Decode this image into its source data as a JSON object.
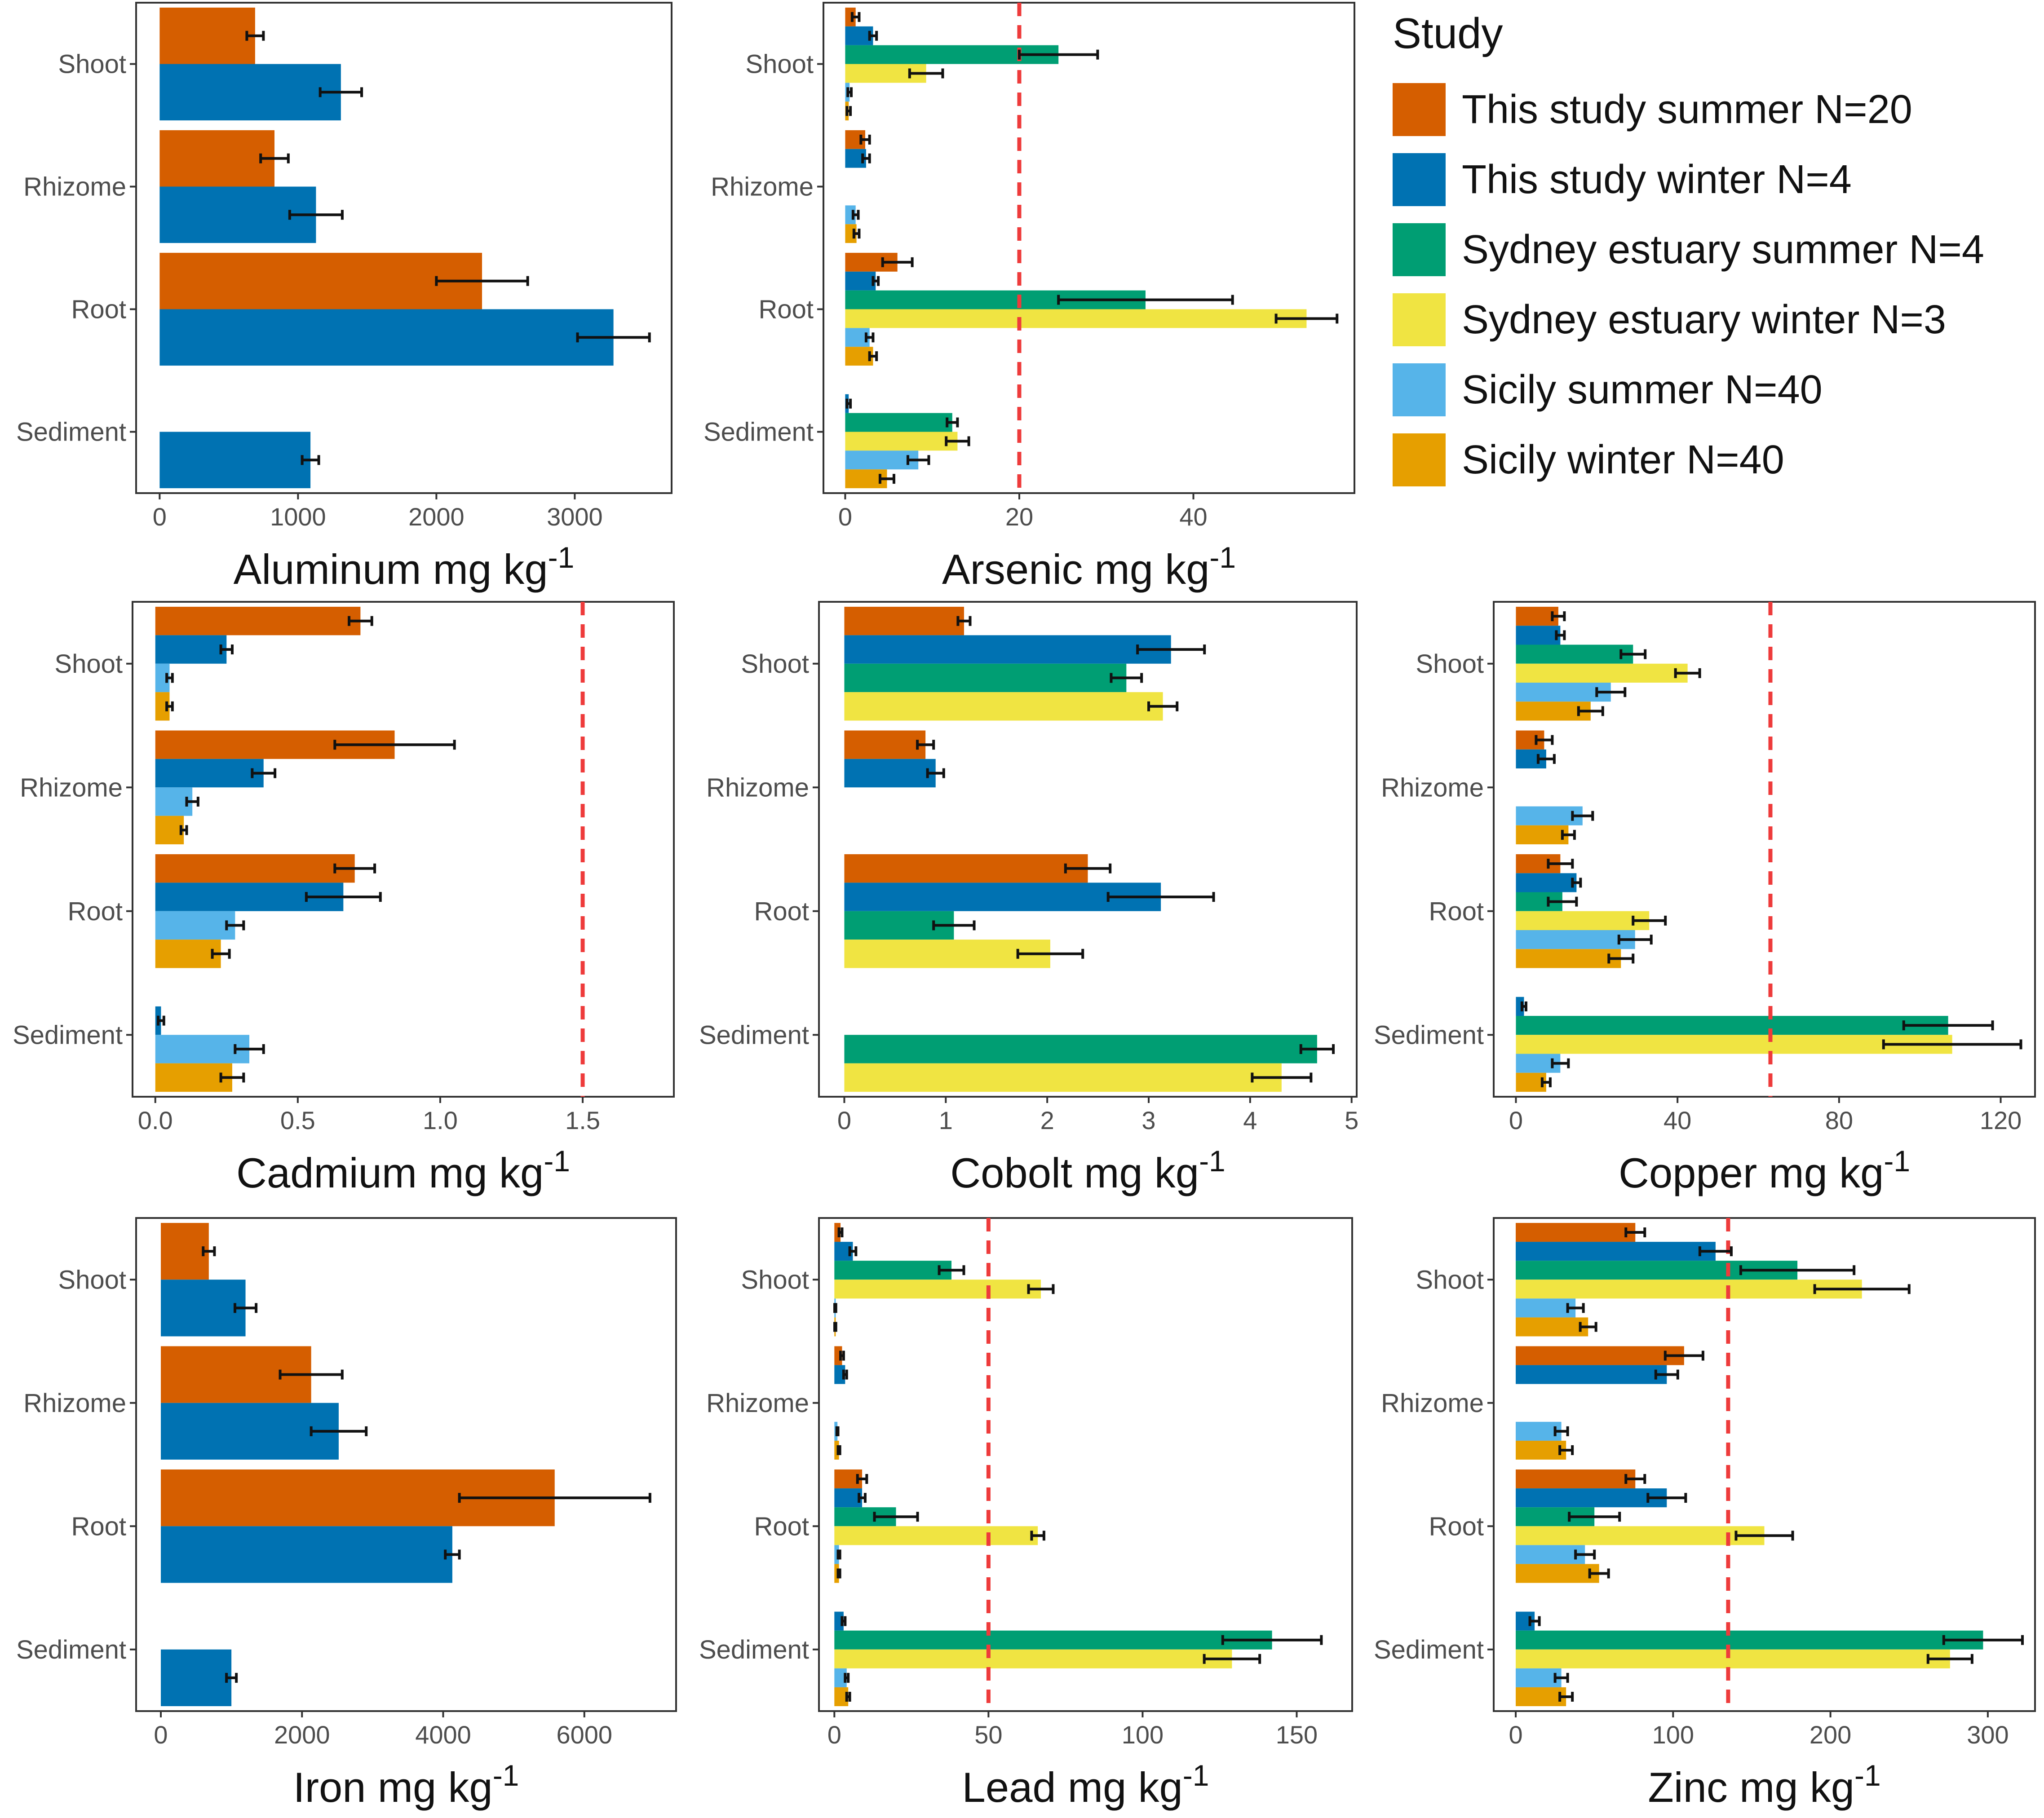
{
  "legend": {
    "title": "Study",
    "items": [
      {
        "label": "This study summer N=20",
        "color": "#D55E00"
      },
      {
        "label": "This study winter N=4",
        "color": "#0072B2"
      },
      {
        "label": "Sydney estuary summer N=4",
        "color": "#009E73"
      },
      {
        "label": "Sydney estuary winter N=3",
        "color": "#F0E442"
      },
      {
        "label": "Sicily summer N=40",
        "color": "#56B4E9"
      },
      {
        "label": "Sicily winter N=40",
        "color": "#E69F00"
      }
    ]
  },
  "chart_data": [
    {
      "type": "bar",
      "orientation": "horizontal",
      "title": "Aluminum mg kg-1",
      "xlabel_main": "Aluminum mg kg",
      "xlabel_sup": "-1",
      "categories": [
        "Shoot",
        "Rhizome",
        "Root",
        "Sediment"
      ],
      "xlim": [
        -170,
        3700
      ],
      "xticks": [
        0,
        1000,
        2000,
        3000
      ],
      "series": [
        {
          "name": "This study summer N=20",
          "values": [
            690,
            830,
            2330,
            null
          ],
          "errors": [
            60,
            100,
            330,
            null
          ]
        },
        {
          "name": "This study winter N=4",
          "values": [
            1310,
            1130,
            3280,
            1090
          ],
          "errors": [
            150,
            190,
            260,
            60
          ]
        }
      ]
    },
    {
      "type": "bar",
      "orientation": "horizontal",
      "title": "Arsenic mg kg-1",
      "xlabel_main": "Arsenic mg kg",
      "xlabel_sup": "-1",
      "categories": [
        "Shoot",
        "Rhizome",
        "Root",
        "Sediment"
      ],
      "xlim": [
        -2.5,
        58.5
      ],
      "xticks": [
        0,
        20,
        40
      ],
      "reference_line": 20,
      "series": [
        {
          "name": "This study summer N=20",
          "values": [
            1.2,
            2.3,
            6.0,
            null
          ],
          "errors": [
            0.4,
            0.5,
            1.7,
            null
          ]
        },
        {
          "name": "This study winter N=4",
          "values": [
            3.2,
            2.4,
            3.5,
            0.4
          ],
          "errors": [
            0.4,
            0.4,
            0.3,
            0.2
          ]
        },
        {
          "name": "Sydney estuary summer N=4",
          "values": [
            24.5,
            null,
            34.5,
            12.3
          ],
          "errors": [
            4.5,
            null,
            10.0,
            0.6
          ]
        },
        {
          "name": "Sydney estuary winter N=3",
          "values": [
            9.3,
            null,
            53.0,
            12.9
          ],
          "errors": [
            1.9,
            null,
            3.5,
            1.3
          ]
        },
        {
          "name": "Sicily summer N=40",
          "values": [
            0.5,
            1.2,
            2.8,
            8.4
          ],
          "errors": [
            0.2,
            0.3,
            0.4,
            1.2
          ]
        },
        {
          "name": "Sicily winter N=40",
          "values": [
            0.4,
            1.3,
            3.2,
            4.8
          ],
          "errors": [
            0.2,
            0.3,
            0.4,
            0.8
          ]
        }
      ]
    },
    {
      "type": "bar",
      "orientation": "horizontal",
      "title": "Cadmium mg kg-1",
      "xlabel_main": "Cadmium mg kg",
      "xlabel_sup": "-1",
      "categories": [
        "Shoot",
        "Rhizome",
        "Root",
        "Sediment"
      ],
      "xlim": [
        -0.08,
        1.82
      ],
      "xticks": [
        0.0,
        0.5,
        1.0,
        1.5
      ],
      "tick_decimals": 1,
      "reference_line": 1.5,
      "series": [
        {
          "name": "This study summer N=20",
          "values": [
            0.72,
            0.84,
            0.7,
            null
          ],
          "errors": [
            0.04,
            0.21,
            0.07,
            null
          ]
        },
        {
          "name": "This study winter N=4",
          "values": [
            0.25,
            0.38,
            0.66,
            0.02
          ],
          "errors": [
            0.02,
            0.04,
            0.13,
            0.01
          ]
        },
        {
          "name": "Sicily summer N=40",
          "values": [
            0.05,
            0.13,
            0.28,
            0.33
          ],
          "errors": [
            0.01,
            0.02,
            0.03,
            0.05
          ]
        },
        {
          "name": "Sicily winter N=40",
          "values": [
            0.05,
            0.1,
            0.23,
            0.27
          ],
          "errors": [
            0.01,
            0.01,
            0.03,
            0.04
          ]
        }
      ]
    },
    {
      "type": "bar",
      "orientation": "horizontal",
      "title": "Cobolt mg kg-1",
      "xlabel_main": "Cobolt mg kg",
      "xlabel_sup": "-1",
      "categories": [
        "Shoot",
        "Rhizome",
        "Root",
        "Sediment"
      ],
      "xlim": [
        -0.25,
        5.05
      ],
      "xticks": [
        0,
        1,
        2,
        3,
        4,
        5
      ],
      "series": [
        {
          "name": "This study summer N=20",
          "values": [
            1.18,
            0.8,
            2.4,
            null
          ],
          "errors": [
            0.06,
            0.08,
            0.22,
            null
          ]
        },
        {
          "name": "This study winter N=4",
          "values": [
            3.22,
            0.9,
            3.12,
            null
          ],
          "errors": [
            0.33,
            0.08,
            0.52,
            null
          ]
        },
        {
          "name": "Sydney estuary summer N=4",
          "values": [
            2.78,
            null,
            1.08,
            4.66
          ],
          "errors": [
            0.15,
            null,
            0.2,
            0.16
          ]
        },
        {
          "name": "Sydney estuary winter N=3",
          "values": [
            3.14,
            null,
            2.03,
            4.31
          ],
          "errors": [
            0.14,
            null,
            0.32,
            0.29
          ]
        }
      ]
    },
    {
      "type": "bar",
      "orientation": "horizontal",
      "title": "Copper mg kg-1",
      "xlabel_main": "Copper mg kg",
      "xlabel_sup": "-1",
      "categories": [
        "Shoot",
        "Rhizome",
        "Root",
        "Sediment"
      ],
      "xlim": [
        -5.5,
        128.5
      ],
      "xticks": [
        0,
        40,
        80,
        120
      ],
      "reference_line": 63,
      "series": [
        {
          "name": "This study summer N=20",
          "values": [
            10.5,
            7.0,
            11.0,
            null
          ],
          "errors": [
            1.5,
            2.0,
            3.0,
            null
          ]
        },
        {
          "name": "This study winter N=4",
          "values": [
            11.0,
            7.5,
            15.0,
            2.0
          ],
          "errors": [
            1.0,
            2.0,
            1.0,
            0.5
          ]
        },
        {
          "name": "Sydney estuary summer N=4",
          "values": [
            29.0,
            null,
            11.5,
            107.0
          ],
          "errors": [
            3.0,
            null,
            3.5,
            11.0
          ]
        },
        {
          "name": "Sydney estuary winter N=3",
          "values": [
            42.5,
            null,
            33.0,
            108.0
          ],
          "errors": [
            3.0,
            null,
            4.0,
            17.0
          ]
        },
        {
          "name": "Sicily summer N=40",
          "values": [
            23.5,
            16.5,
            29.5,
            11.0
          ],
          "errors": [
            3.5,
            2.5,
            4.0,
            2.0
          ]
        },
        {
          "name": "Sicily winter N=40",
          "values": [
            18.5,
            13.0,
            26.0,
            7.5
          ],
          "errors": [
            3.0,
            1.5,
            3.0,
            1.0
          ]
        }
      ]
    },
    {
      "type": "bar",
      "orientation": "horizontal",
      "title": "Iron mg kg-1",
      "xlabel_main": "Iron mg kg",
      "xlabel_sup": "-1",
      "categories": [
        "Shoot",
        "Rhizome",
        "Root",
        "Sediment"
      ],
      "xlim": [
        -350,
        7300
      ],
      "xticks": [
        0,
        2000,
        4000,
        6000
      ],
      "series": [
        {
          "name": "This study summer N=20",
          "values": [
            680,
            2130,
            5580,
            null
          ],
          "errors": [
            80,
            440,
            1350,
            null
          ]
        },
        {
          "name": "This study winter N=4",
          "values": [
            1200,
            2520,
            4130,
            1000
          ],
          "errors": [
            150,
            390,
            100,
            70
          ]
        }
      ]
    },
    {
      "type": "bar",
      "orientation": "horizontal",
      "title": "Lead mg kg-1",
      "xlabel_main": "Lead mg kg",
      "xlabel_sup": "-1",
      "categories": [
        "Shoot",
        "Rhizome",
        "Root",
        "Sediment"
      ],
      "xlim": [
        -5.0,
        168.0
      ],
      "xticks": [
        0,
        50,
        100,
        150
      ],
      "reference_line": 50,
      "series": [
        {
          "name": "This study summer N=20",
          "values": [
            2.0,
            2.5,
            9.0,
            null
          ],
          "errors": [
            0.5,
            0.5,
            1.5,
            null
          ]
        },
        {
          "name": "This study winter N=4",
          "values": [
            6.0,
            3.5,
            9.0,
            3.0
          ],
          "errors": [
            1.0,
            0.5,
            1.0,
            0.5
          ]
        },
        {
          "name": "Sydney estuary summer N=4",
          "values": [
            38.0,
            null,
            20.0,
            142.0
          ],
          "errors": [
            4.0,
            null,
            7.0,
            16.0
          ]
        },
        {
          "name": "Sydney estuary winter N=3",
          "values": [
            67.0,
            null,
            66.0,
            129.0
          ],
          "errors": [
            4.0,
            null,
            2.0,
            9.0
          ]
        },
        {
          "name": "Sicily summer N=40",
          "values": [
            0.3,
            1.0,
            1.5,
            4.0
          ],
          "errors": [
            0.2,
            0.2,
            0.3,
            0.5
          ]
        },
        {
          "name": "Sicily winter N=40",
          "values": [
            0.3,
            1.5,
            1.5,
            4.5
          ],
          "errors": [
            0.2,
            0.3,
            0.3,
            0.5
          ]
        }
      ]
    },
    {
      "type": "bar",
      "orientation": "horizontal",
      "title": "Zinc mg kg-1",
      "xlabel_main": "Zinc mg kg",
      "xlabel_sup": "-1",
      "categories": [
        "Shoot",
        "Rhizome",
        "Root",
        "Sediment"
      ],
      "xlim": [
        -14.0,
        330.0
      ],
      "xticks": [
        0,
        100,
        200,
        300
      ],
      "reference_line": 135,
      "series": [
        {
          "name": "This study summer N=20",
          "values": [
            76,
            107,
            76,
            null
          ],
          "errors": [
            6,
            12,
            6,
            null
          ]
        },
        {
          "name": "This study winter N=4",
          "values": [
            127,
            96,
            96,
            12
          ],
          "errors": [
            10,
            7,
            12,
            3
          ]
        },
        {
          "name": "Sydney estuary summer N=4",
          "values": [
            179,
            null,
            50,
            297
          ],
          "errors": [
            36,
            null,
            16,
            25
          ]
        },
        {
          "name": "Sydney estuary winter N=3",
          "values": [
            220,
            null,
            158,
            276
          ],
          "errors": [
            30,
            null,
            18,
            14
          ]
        },
        {
          "name": "Sicily summer N=40",
          "values": [
            38,
            29,
            44,
            29
          ],
          "errors": [
            5,
            4,
            6,
            4
          ]
        },
        {
          "name": "Sicily winter N=40",
          "values": [
            46,
            32,
            53,
            32
          ],
          "errors": [
            5,
            4,
            6,
            4
          ]
        }
      ]
    }
  ]
}
